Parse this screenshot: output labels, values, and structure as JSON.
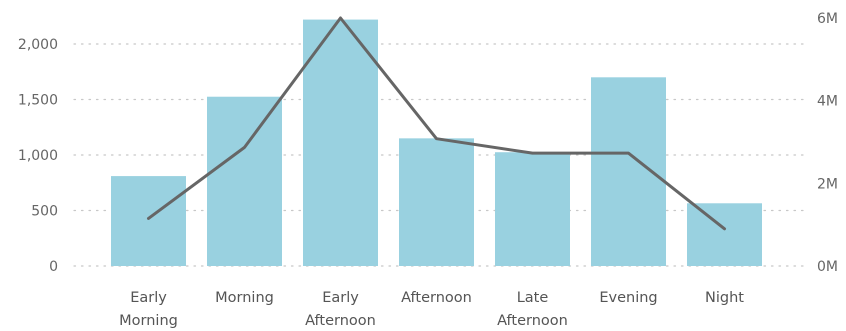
{
  "chart_data": {
    "type": "bar",
    "categories": [
      [
        "Early",
        "Morning"
      ],
      [
        "Morning"
      ],
      [
        "Early",
        "Afternoon"
      ],
      [
        "Afternoon"
      ],
      [
        "Late",
        "Afternoon"
      ],
      [
        "Evening"
      ],
      [
        "Night"
      ]
    ],
    "series": [
      {
        "type": "bar",
        "axis": "left",
        "values": [
          810,
          1525,
          2220,
          1150,
          1025,
          1700,
          565
        ],
        "color": "#99D1E0"
      },
      {
        "type": "line",
        "axis": "right",
        "values": [
          1150000,
          2870000,
          6000000,
          3080000,
          2730000,
          2730000,
          900000
        ],
        "color": "#666666"
      }
    ],
    "y_left": {
      "min": 0,
      "max": 2000,
      "ticks": [
        0,
        500,
        1000,
        1500,
        2000
      ],
      "tick_labels": [
        "0",
        "500",
        "1,000",
        "1,500",
        "2,000"
      ]
    },
    "y_right": {
      "min": 0,
      "max": 6000000,
      "ticks": [
        0,
        2000000,
        4000000,
        6000000
      ],
      "tick_labels": [
        "0M",
        "2M",
        "4M",
        "6M"
      ]
    },
    "grid": true,
    "grid_color": "#C8C8C8",
    "title": "",
    "xlabel": "",
    "ylabel": ""
  }
}
